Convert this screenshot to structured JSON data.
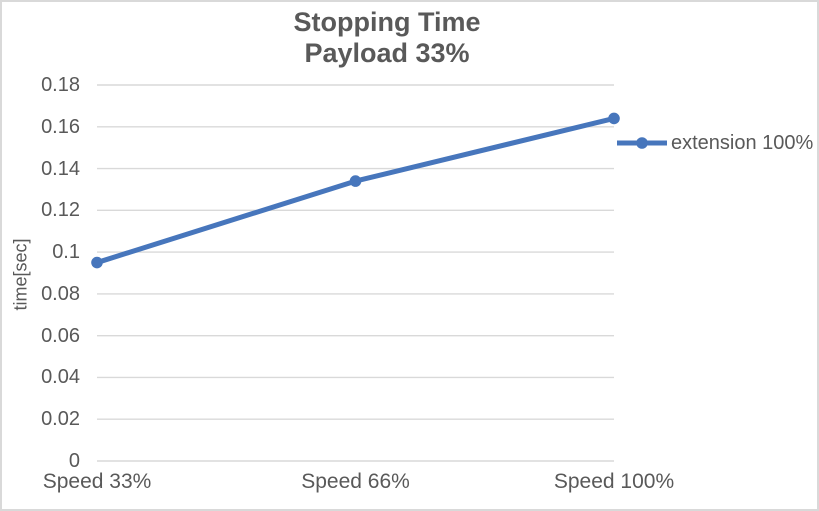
{
  "chart": {
    "title_line1": "Stopping Time",
    "title_line2": "Payload 33%"
  },
  "chart_data": {
    "type": "line",
    "title": "Stopping Time Payload 33%",
    "categories": [
      "Speed 33%",
      "Speed 66%",
      "Speed 100%"
    ],
    "series": [
      {
        "name": "extension 100%",
        "values": [
          0.095,
          0.134,
          0.164
        ]
      }
    ],
    "xlabel": "",
    "ylabel": "time[sec]",
    "ylim": [
      0,
      0.18
    ],
    "ytick_step": 0.02,
    "ytick_labels": [
      "0",
      "0.02",
      "0.04",
      "0.06",
      "0.08",
      "0.1",
      "0.12",
      "0.14",
      "0.16",
      "0.18"
    ],
    "grid": true,
    "legend_position": "right",
    "marker": "circle",
    "colors": {
      "series": "#4776bc",
      "gridline": "#d9d9d9",
      "text": "#595959",
      "border": "#d9d9d9"
    }
  }
}
